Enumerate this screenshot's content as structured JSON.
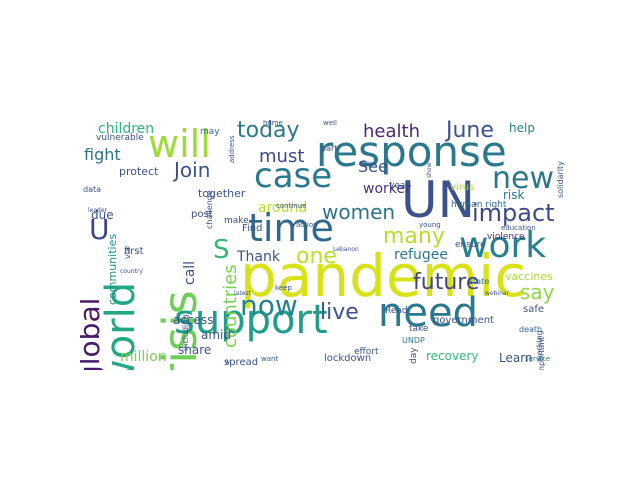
{
  "word_cloud": {
    "words": [
      {
        "text": "pandemic",
        "color": "#d8e219"
      },
      {
        "text": "response",
        "color": "#2a788e"
      },
      {
        "text": "UN",
        "color": "#3b528b"
      },
      {
        "text": "crisis",
        "color": "#6ece58"
      },
      {
        "text": "world",
        "color": "#22a884"
      },
      {
        "text": "support",
        "color": "#1f9e89"
      },
      {
        "text": "need",
        "color": "#2a788e"
      },
      {
        "text": "time",
        "color": "#31688e"
      },
      {
        "text": "will",
        "color": "#a0da39"
      },
      {
        "text": "work",
        "color": "#26828e"
      },
      {
        "text": "case",
        "color": "#2a788e"
      },
      {
        "text": "global",
        "color": "#481a6c"
      },
      {
        "text": "new",
        "color": "#2a788e"
      },
      {
        "text": "now",
        "color": "#26828e"
      },
      {
        "text": "U",
        "color": "#414487"
      },
      {
        "text": "impact",
        "color": "#3e4989"
      },
      {
        "text": "today",
        "color": "#2a788e"
      },
      {
        "text": "future",
        "color": "#414487"
      },
      {
        "text": "live",
        "color": "#3b528b"
      },
      {
        "text": "one",
        "color": "#bddf26"
      },
      {
        "text": "S",
        "color": "#35b779"
      },
      {
        "text": "countries",
        "color": "#7ad151"
      },
      {
        "text": "women",
        "color": "#2c728e"
      },
      {
        "text": "many",
        "color": "#b5de2b"
      },
      {
        "text": "June",
        "color": "#3b528b"
      },
      {
        "text": "say",
        "color": "#8fd744"
      },
      {
        "text": "Join",
        "color": "#3b528b"
      },
      {
        "text": "must",
        "color": "#3e4989"
      },
      {
        "text": "health",
        "color": "#482878"
      },
      {
        "text": "fight",
        "color": "#2c728e"
      },
      {
        "text": "children",
        "color": "#2fb47c"
      },
      {
        "text": "See",
        "color": "#3b528b"
      },
      {
        "text": "worker",
        "color": "#46337e"
      },
      {
        "text": "around",
        "color": "#b5de2b"
      },
      {
        "text": "refugee",
        "color": "#2a788e"
      },
      {
        "text": "Thank",
        "color": "#3b528b"
      },
      {
        "text": "million",
        "color": "#7ad151"
      },
      {
        "text": "call",
        "color": "#3b528b"
      },
      {
        "text": "communities",
        "color": "#21918c"
      },
      {
        "text": "help",
        "color": "#26828e"
      },
      {
        "text": "risk",
        "color": "#2a788e"
      },
      {
        "text": "vaccines",
        "color": "#addc30"
      },
      {
        "text": "Learn",
        "color": "#3b528b"
      },
      {
        "text": "recovery",
        "color": "#35b779"
      },
      {
        "text": "government",
        "color": "#3b528b"
      },
      {
        "text": "access",
        "color": "#3b528b"
      },
      {
        "text": "share",
        "color": "#3b528b"
      },
      {
        "text": "amid",
        "color": "#3b528b"
      },
      {
        "text": "due",
        "color": "#3b528b"
      },
      {
        "text": "protect",
        "color": "#3b528b"
      },
      {
        "text": "together",
        "color": "#3b528b"
      },
      {
        "text": "post",
        "color": "#3b528b"
      },
      {
        "text": "Find",
        "color": "#3b528b"
      },
      {
        "text": "virus",
        "color": "#a0da39"
      },
      {
        "text": "human right",
        "color": "#31688e"
      },
      {
        "text": "violence",
        "color": "#482878"
      },
      {
        "text": "ensure",
        "color": "#3b528b"
      },
      {
        "text": "Read",
        "color": "#3b528b"
      },
      {
        "text": "take",
        "color": "#3b528b"
      },
      {
        "text": "safe",
        "color": "#3b528b"
      },
      {
        "text": "state",
        "color": "#31688e"
      },
      {
        "text": "death",
        "color": "#31688e"
      },
      {
        "text": "working",
        "color": "#3b528b"
      },
      {
        "text": "important",
        "color": "#3b528b"
      },
      {
        "text": "spread",
        "color": "#3b528b"
      },
      {
        "text": "lockdown",
        "color": "#3b528b"
      },
      {
        "text": "effort",
        "color": "#3b528b"
      },
      {
        "text": "UNDP",
        "color": "#2a788e"
      },
      {
        "text": "service",
        "color": "#2a788e"
      },
      {
        "text": "may",
        "color": "#2c728e"
      },
      {
        "text": "vulnerable",
        "color": "#3b528b"
      },
      {
        "text": "data",
        "color": "#3b528b"
      },
      {
        "text": "first",
        "color": "#3b528b"
      },
      {
        "text": "via",
        "color": "#3b528b"
      },
      {
        "text": "including",
        "color": "#3b528b"
      },
      {
        "text": "keep",
        "color": "#3b528b"
      },
      {
        "text": "want",
        "color": "#3b528b"
      },
      {
        "text": "make",
        "color": "#3b528b"
      },
      {
        "text": "action",
        "color": "#3b528b"
      },
      {
        "text": "part",
        "color": "#3b528b"
      },
      {
        "text": "year",
        "color": "#3b528b"
      },
      {
        "text": "day",
        "color": "#3b528b"
      },
      {
        "text": "young",
        "color": "#3b528b"
      },
      {
        "text": "continue",
        "color": "#3b528b"
      },
      {
        "text": "challenge",
        "color": "#3b528b"
      },
      {
        "text": "address",
        "color": "#3b528b"
      },
      {
        "text": "home",
        "color": "#3b528b"
      },
      {
        "text": "well",
        "color": "#3b528b"
      },
      {
        "text": "education",
        "color": "#3b528b"
      },
      {
        "text": "solidarity",
        "color": "#3b528b"
      },
      {
        "text": "leader",
        "color": "#3b528b"
      },
      {
        "text": "webinar",
        "color": "#3b528b"
      },
      {
        "text": "Lebanon",
        "color": "#3b528b"
      },
      {
        "text": "country",
        "color": "#3b528b"
      },
      {
        "text": "latest",
        "color": "#3b528b"
      },
      {
        "text": "show",
        "color": "#3b528b"
      },
      {
        "text": "key",
        "color": "#3b528b"
      },
      {
        "text": "w",
        "color": "#3b528b"
      }
    ]
  }
}
